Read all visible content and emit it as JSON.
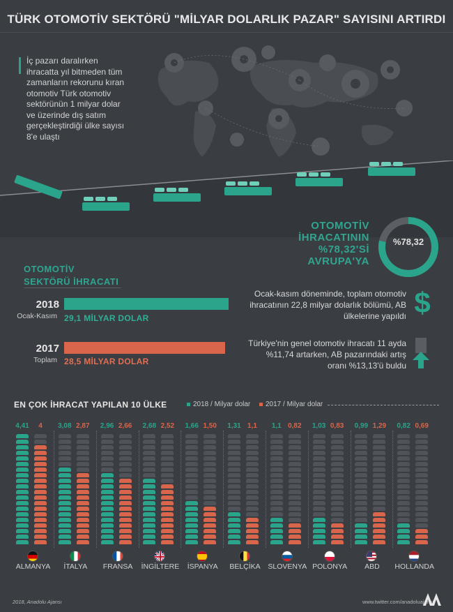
{
  "title": "TÜRK OTOMOTİV SEKTÖRÜ \"MİLYAR DOLARLIK PAZAR\" SAYISINI ARTIRDI",
  "intro": "İç pazarı daralırken ihracatta yıl bitmeden tüm zamanların rekorunu kıran otomotiv Türk otomotiv sektörünün 1 milyar dolar ve üzerinde dış satım gerçekleştirdiği ülke sayısı 8'e ulaştı",
  "europe_share": {
    "text_lines": [
      "OTOMOTİV",
      "İHRACATININ",
      "%78,32'Sİ",
      "AVRUPA'YA"
    ],
    "ring_label": "%78,32",
    "value_percent": 78.32
  },
  "export_section": {
    "title_lines": [
      "OTOMOTİV",
      "SEKTÖRÜ İHRACATI"
    ],
    "rows": [
      {
        "year": "2018",
        "sub": "Ocak-Kasım",
        "label": "29,1 MİLYAR DOLAR",
        "value": 29.1
      },
      {
        "year": "2017",
        "sub": "Toplam",
        "label": "28,5 MİLYAR DOLAR",
        "value": 28.5
      }
    ]
  },
  "notes": {
    "note1": "Ocak-kasım döneminde, toplam otomotiv ihracatının 22,8 milyar dolarlık bölümü, AB ülkelerine yapıldı",
    "note2": "Türkiye'nin genel otomotiv ihracatı 11 ayda %11,74 artarken, AB pazarındaki artış oranı %13,13'ü buldu",
    "dollar_icon": "$"
  },
  "top10": {
    "title": "EN ÇOK İHRACAT YAPILAN 10 ÜLKE",
    "legend_2018": "2018 / Milyar dolar",
    "legend_2017": "2017 / Milyar dolar"
  },
  "colors": {
    "accent_2018": "#2aa48b",
    "accent_2017": "#d9654b",
    "background": "#3a3d41"
  },
  "chart_data": {
    "type": "bar",
    "categories": [
      "ALMANYA",
      "İTALYA",
      "FRANSA",
      "İNGİLTERE",
      "İSPANYA",
      "BELÇİKA",
      "SLOVENYA",
      "POLONYA",
      "ABD",
      "HOLLANDA"
    ],
    "series": [
      {
        "name": "2018 / Milyar dolar",
        "values": [
          4.41,
          3.08,
          2.96,
          2.68,
          1.66,
          1.31,
          1.1,
          1.03,
          0.99,
          0.82
        ],
        "labels": [
          "4,41",
          "3,08",
          "2,96",
          "2,68",
          "1,66",
          "1,31",
          "1,1",
          "1,03",
          "0,99",
          "0,82"
        ]
      },
      {
        "name": "2017 / Milyar dolar",
        "values": [
          4,
          2.87,
          2.66,
          2.52,
          1.5,
          1.1,
          0.82,
          0.83,
          1.29,
          0.69
        ],
        "labels": [
          "4",
          "2,87",
          "2,66",
          "2,52",
          "1,50",
          "1,1",
          "0,82",
          "0,83",
          "1,29",
          "0,69"
        ]
      }
    ],
    "flags": [
      "de-flag-icon",
      "it-flag-icon",
      "fr-flag-icon",
      "gb-flag-icon",
      "es-flag-icon",
      "be-flag-icon",
      "si-flag-icon",
      "pl-flag-icon",
      "us-flag-icon",
      "nl-flag-icon"
    ],
    "max_value": 4.41
  },
  "footer": {
    "left": "2018, Anadolu Ajansı",
    "right": "www.twitter.com/anadoluajansi"
  }
}
